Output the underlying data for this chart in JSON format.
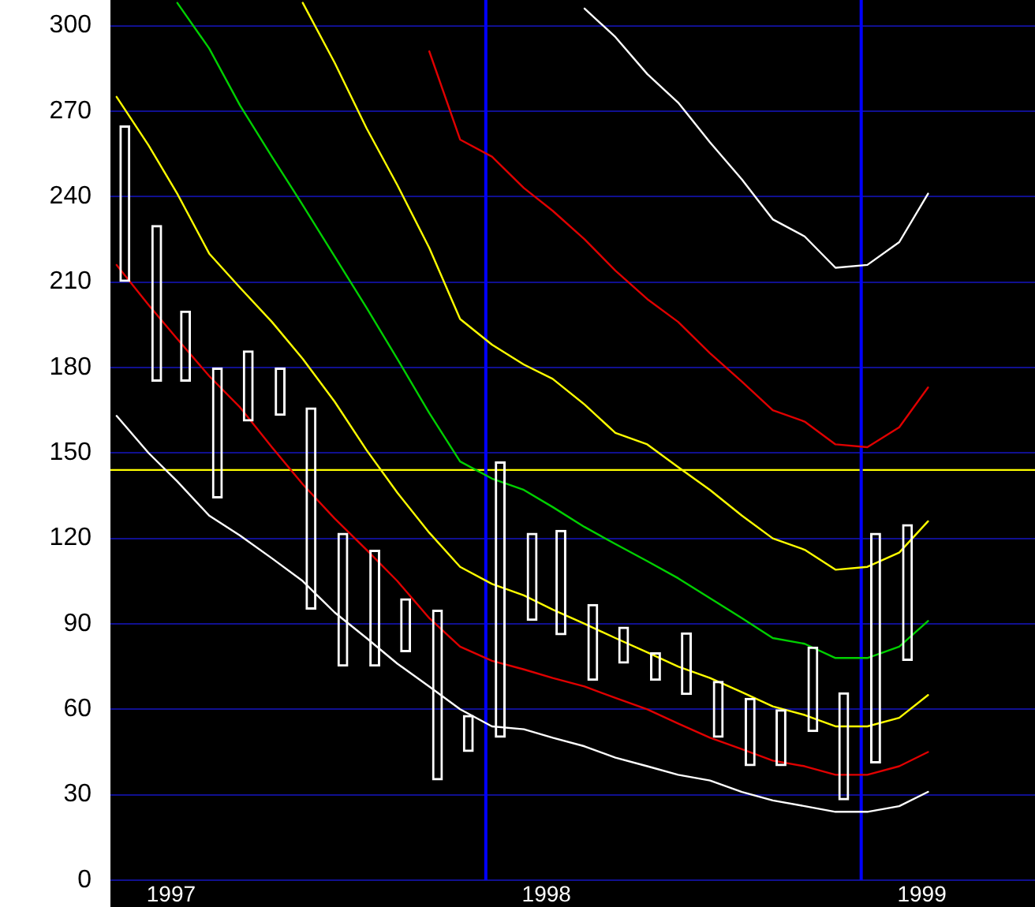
{
  "chart_data": {
    "type": "bar",
    "x": [
      "1997-01-15",
      "1997-02-15",
      "1997-03-15",
      "1997-04-15",
      "1997-05-15",
      "1997-06-15",
      "1997-07-15",
      "1997-08-15",
      "1997-09-15",
      "1997-10-15",
      "1997-11-15",
      "1997-12-15",
      "1998-01-15",
      "1998-02-15",
      "1998-03-15",
      "1998-04-15",
      "1998-05-15",
      "1998-06-15",
      "1998-07-15",
      "1998-08-15",
      "1998-09-15",
      "1998-10-15",
      "1998-11-15",
      "1998-12-15",
      "1999-01-15",
      "1999-02-15"
    ],
    "xlim": [
      "1997-01-01",
      "1999-06-19"
    ],
    "xticks": [
      {
        "value": "1997-03-01",
        "label": "1997"
      },
      {
        "value": "1998-03-01",
        "label": "1998"
      },
      {
        "value": "1999-03-01",
        "label": "1999"
      }
    ],
    "ylim": [
      0,
      309
    ],
    "yticks": [
      0,
      30,
      60,
      90,
      120,
      150,
      180,
      210,
      240,
      270,
      300
    ],
    "grid": "y",
    "marker": "none",
    "ref_lines": [
      {
        "axis": "y",
        "value": 144,
        "color": "#ffff00"
      },
      {
        "axis": "x",
        "value": "1998-01-01",
        "color": "#0000ff"
      },
      {
        "axis": "x",
        "value": "1999-01-01",
        "color": "#0000ff"
      }
    ],
    "series": [
      {
        "color": "#ffffff",
        "base": [
          210,
          175,
          175,
          134,
          161,
          163,
          95,
          75,
          75,
          80,
          35,
          45,
          50,
          91,
          86,
          70,
          76,
          70,
          65,
          50,
          40,
          40,
          52,
          28,
          41,
          77
        ],
        "values": [
          55,
          55,
          25,
          46,
          25,
          17,
          71,
          47,
          41,
          19,
          60,
          13,
          97,
          31,
          37,
          27,
          13,
          10,
          22,
          20,
          24,
          20,
          30,
          38,
          81,
          48
        ]
      },
      {
        "type": "line",
        "color": "#ffffff",
        "x": [
          "1997-01-07",
          "1997-02-07",
          "1997-03-07",
          "1997-04-07",
          "1997-05-07",
          "1997-06-07",
          "1997-07-07",
          "1997-08-07",
          "1997-09-07",
          "1997-10-07",
          "1997-11-07",
          "1997-12-07",
          "1998-01-07",
          "1998-02-07",
          "1998-03-07",
          "1998-04-07",
          "1998-05-07",
          "1998-06-07",
          "1998-07-07",
          "1998-08-07",
          "1998-09-07",
          "1998-10-07",
          "1998-11-07",
          "1998-12-07",
          "1999-01-07",
          "1999-02-07",
          "1999-03-07"
        ],
        "values": [
          163,
          150,
          140,
          128,
          121,
          113,
          105,
          94,
          85,
          76,
          68,
          60,
          54,
          53,
          50,
          47,
          43,
          40,
          37,
          35,
          31,
          28,
          26,
          24,
          24,
          26,
          31
        ]
      },
      {
        "type": "line",
        "color": "#e00000",
        "x": [
          "1997-01-07",
          "1997-02-07",
          "1997-03-07",
          "1997-04-07",
          "1997-05-07",
          "1997-06-07",
          "1997-07-07",
          "1997-08-07",
          "1997-09-07",
          "1997-10-07",
          "1997-11-07",
          "1997-12-07",
          "1998-01-07",
          "1998-02-07",
          "1998-03-07",
          "1998-04-07",
          "1998-05-07",
          "1998-06-07",
          "1998-07-07",
          "1998-08-07",
          "1998-09-07",
          "1998-10-07",
          "1998-11-07",
          "1998-12-07",
          "1999-01-07",
          "1999-02-07",
          "1999-03-07"
        ],
        "values": [
          216,
          202,
          190,
          177,
          166,
          152,
          139,
          127,
          116,
          105,
          92,
          82,
          77,
          74,
          71,
          68,
          64,
          60,
          55,
          50,
          46,
          42,
          40,
          37,
          37,
          40,
          45
        ]
      },
      {
        "type": "line",
        "color": "#ffff00",
        "x": [
          "1997-01-07",
          "1997-02-07",
          "1997-03-07",
          "1997-04-07",
          "1997-05-07",
          "1997-06-07",
          "1997-07-07",
          "1997-08-07",
          "1997-09-07",
          "1997-10-07",
          "1997-11-07",
          "1997-12-07",
          "1998-01-07",
          "1998-02-07",
          "1998-03-07",
          "1998-04-07",
          "1998-05-07",
          "1998-06-07",
          "1998-07-07",
          "1998-08-07",
          "1998-09-07",
          "1998-10-07",
          "1998-11-07",
          "1998-12-07",
          "1999-01-07",
          "1999-02-07",
          "1999-03-07"
        ],
        "values": [
          275,
          258,
          241,
          220,
          208,
          196,
          183,
          168,
          151,
          136,
          122,
          110,
          104,
          100,
          95,
          90,
          85,
          80,
          75,
          71,
          66,
          61,
          58,
          54,
          54,
          57,
          65
        ]
      },
      {
        "type": "line",
        "color": "#00d000",
        "x": [
          "1997-03-07",
          "1997-04-07",
          "1997-05-07",
          "1997-06-07",
          "1997-07-07",
          "1997-08-07",
          "1997-09-07",
          "1997-10-07",
          "1997-11-07",
          "1997-12-07",
          "1998-01-07",
          "1998-02-07",
          "1998-03-07",
          "1998-04-07",
          "1998-05-07",
          "1998-06-07",
          "1998-07-07",
          "1998-08-07",
          "1998-09-07",
          "1998-10-07",
          "1998-11-07",
          "1998-12-07",
          "1999-01-07",
          "1999-02-07",
          "1999-03-07"
        ],
        "values": [
          308,
          292,
          272,
          254,
          237,
          219,
          201,
          183,
          164,
          147,
          141,
          137,
          131,
          124,
          118,
          112,
          106,
          99,
          92,
          85,
          83,
          78,
          78,
          82,
          91
        ]
      },
      {
        "type": "line",
        "color": "#ffff00",
        "x": [
          "1997-07-07",
          "1997-08-07",
          "1997-09-07",
          "1997-10-07",
          "1997-11-07",
          "1997-12-07",
          "1998-01-07",
          "1998-02-07",
          "1998-03-07",
          "1998-04-07",
          "1998-05-07",
          "1998-06-07",
          "1998-07-07",
          "1998-08-07",
          "1998-09-07",
          "1998-10-07",
          "1998-11-07",
          "1998-12-07",
          "1999-01-07",
          "1999-02-07",
          "1999-03-07"
        ],
        "values": [
          308,
          287,
          264,
          244,
          222,
          197,
          188,
          181,
          176,
          167,
          157,
          153,
          145,
          137,
          128,
          120,
          116,
          109,
          110,
          115,
          126
        ]
      },
      {
        "type": "line",
        "color": "#e00000",
        "x": [
          "1997-11-07",
          "1997-12-07",
          "1998-01-07",
          "1998-02-07",
          "1998-03-07",
          "1998-04-07",
          "1998-05-07",
          "1998-06-07",
          "1998-07-07",
          "1998-08-07",
          "1998-09-07",
          "1998-10-07",
          "1998-11-07",
          "1998-12-07",
          "1999-01-07",
          "1999-02-07",
          "1999-03-07"
        ],
        "values": [
          291,
          260,
          254,
          243,
          235,
          225,
          214,
          204,
          196,
          185,
          175,
          165,
          161,
          153,
          152,
          159,
          173
        ]
      },
      {
        "type": "line",
        "color": "#ffffff",
        "x": [
          "1998-04-07",
          "1998-05-07",
          "1998-06-07",
          "1998-07-07",
          "1998-08-07",
          "1998-09-07",
          "1998-10-07",
          "1998-11-07",
          "1998-12-07",
          "1999-01-07",
          "1999-02-07",
          "1999-03-07"
        ],
        "values": [
          306,
          296,
          283,
          273,
          259,
          246,
          232,
          226,
          215,
          216,
          224,
          241
        ]
      }
    ]
  }
}
